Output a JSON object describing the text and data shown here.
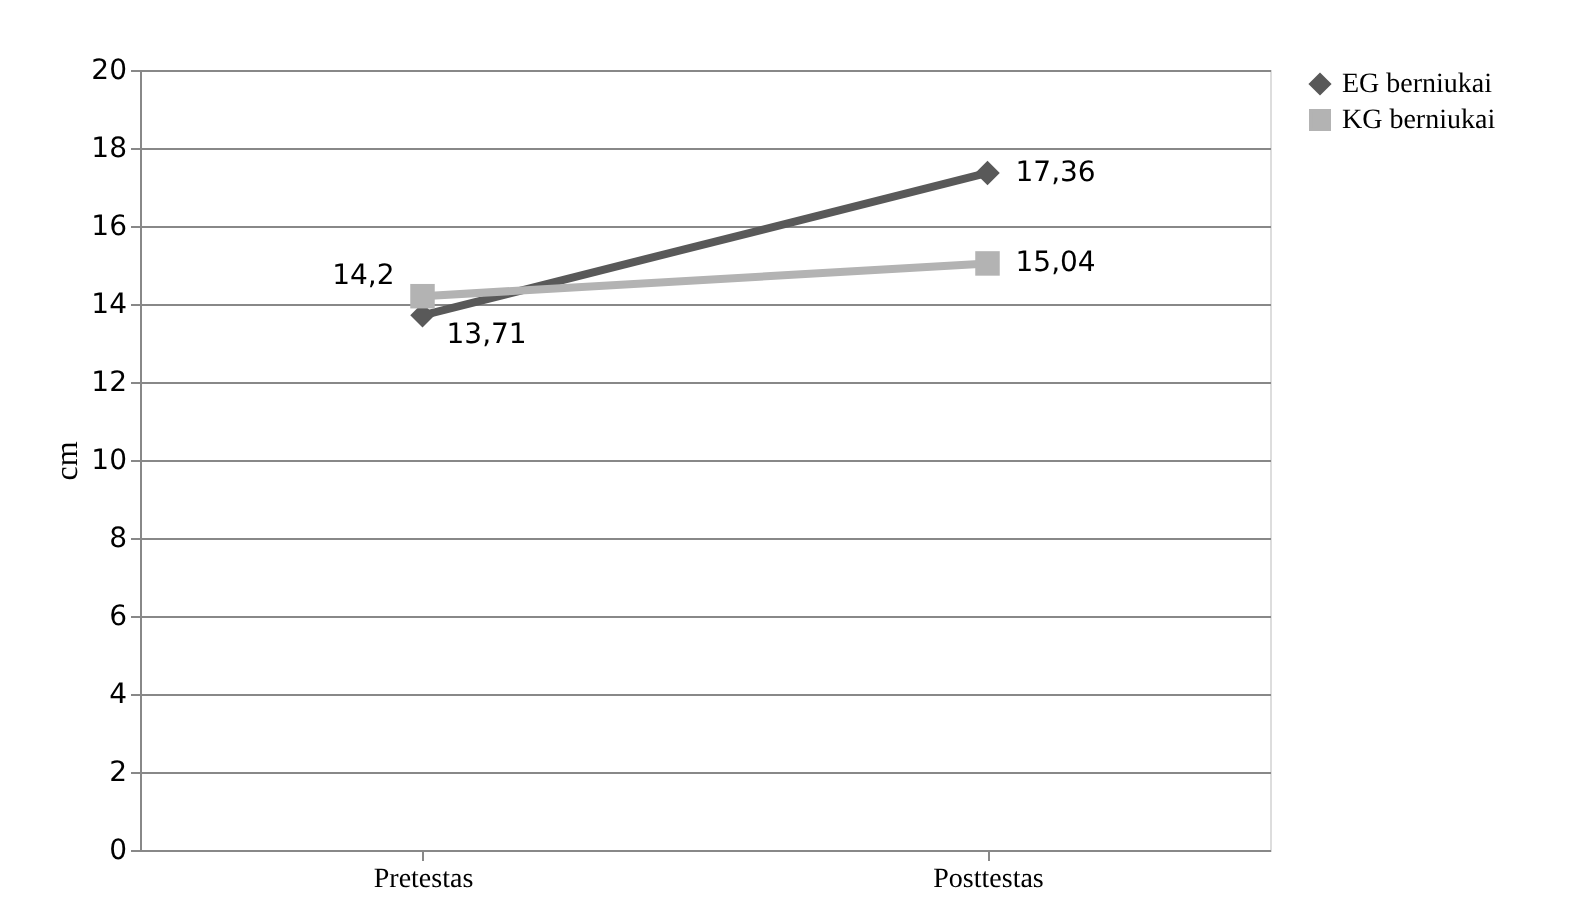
{
  "chart_data": {
    "type": "line",
    "ylabel": "cm",
    "categories": [
      "Pretestas",
      "Posttestas"
    ],
    "series": [
      {
        "name": "EG berniukai",
        "color": "#595959",
        "marker": "diamond",
        "values": [
          13.71,
          17.36
        ],
        "value_labels": [
          "13,71",
          "17,36"
        ]
      },
      {
        "name": "KG berniukai",
        "color": "#b3b3b3",
        "marker": "square",
        "values": [
          14.2,
          15.04
        ],
        "value_labels": [
          "14,2",
          "15,04"
        ]
      }
    ],
    "ylim": [
      0,
      20
    ],
    "yticks": [
      0,
      2,
      4,
      6,
      8,
      10,
      12,
      14,
      16,
      18,
      20
    ],
    "grid": "y",
    "legend": "right"
  }
}
